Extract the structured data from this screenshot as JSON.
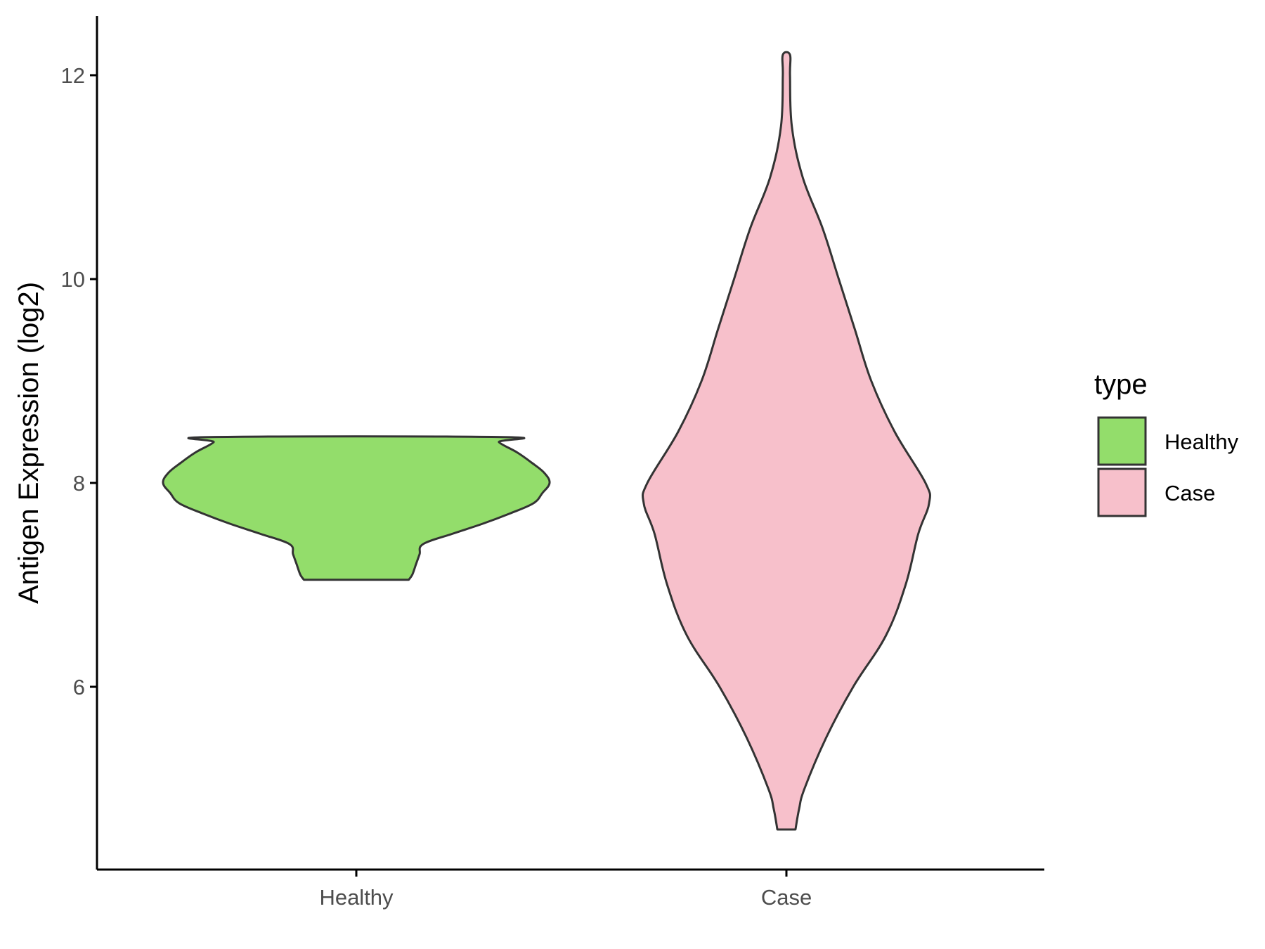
{
  "chart_data": {
    "type": "violin",
    "title": "",
    "xlabel": "",
    "ylabel": "Antigen Expression (log2)",
    "ylim": [
      4.25,
      12.6
    ],
    "yticks": [
      6,
      8,
      10,
      12
    ],
    "categories": [
      "Healthy",
      "Case"
    ],
    "legend": {
      "title": "type",
      "position": "right",
      "entries": [
        {
          "label": "Healthy",
          "color": "#93DD6B"
        },
        {
          "label": "Case",
          "color": "#F7C0CB"
        }
      ]
    },
    "grid": false,
    "series": [
      {
        "name": "Healthy",
        "category": "Healthy",
        "color": "#93DD6B",
        "y_min": 7.05,
        "y_max": 8.45,
        "density_profile": [
          [
            7.05,
            0.29
          ],
          [
            7.1,
            0.31
          ],
          [
            7.2,
            0.33
          ],
          [
            7.3,
            0.35
          ],
          [
            7.4,
            0.37
          ],
          [
            7.5,
            0.53
          ],
          [
            7.6,
            0.7
          ],
          [
            7.7,
            0.85
          ],
          [
            7.8,
            0.98
          ],
          [
            7.9,
            1.03
          ],
          [
            8.0,
            1.07
          ],
          [
            8.1,
            1.04
          ],
          [
            8.2,
            0.97
          ],
          [
            8.3,
            0.89
          ],
          [
            8.4,
            0.79
          ],
          [
            8.45,
            0.81
          ]
        ]
      },
      {
        "name": "Case",
        "category": "Case",
        "color": "#F7C0CB",
        "y_min": 4.6,
        "y_max": 12.2,
        "density_profile": [
          [
            4.6,
            0.05
          ],
          [
            4.8,
            0.07
          ],
          [
            5.0,
            0.1
          ],
          [
            5.5,
            0.22
          ],
          [
            6.0,
            0.37
          ],
          [
            6.5,
            0.55
          ],
          [
            7.0,
            0.66
          ],
          [
            7.5,
            0.73
          ],
          [
            7.8,
            0.79
          ],
          [
            8.0,
            0.77
          ],
          [
            8.5,
            0.6
          ],
          [
            9.0,
            0.47
          ],
          [
            9.5,
            0.38
          ],
          [
            10.0,
            0.29
          ],
          [
            10.5,
            0.2
          ],
          [
            11.0,
            0.09
          ],
          [
            11.5,
            0.03
          ],
          [
            12.0,
            0.02
          ],
          [
            12.2,
            0.02
          ]
        ]
      }
    ]
  }
}
